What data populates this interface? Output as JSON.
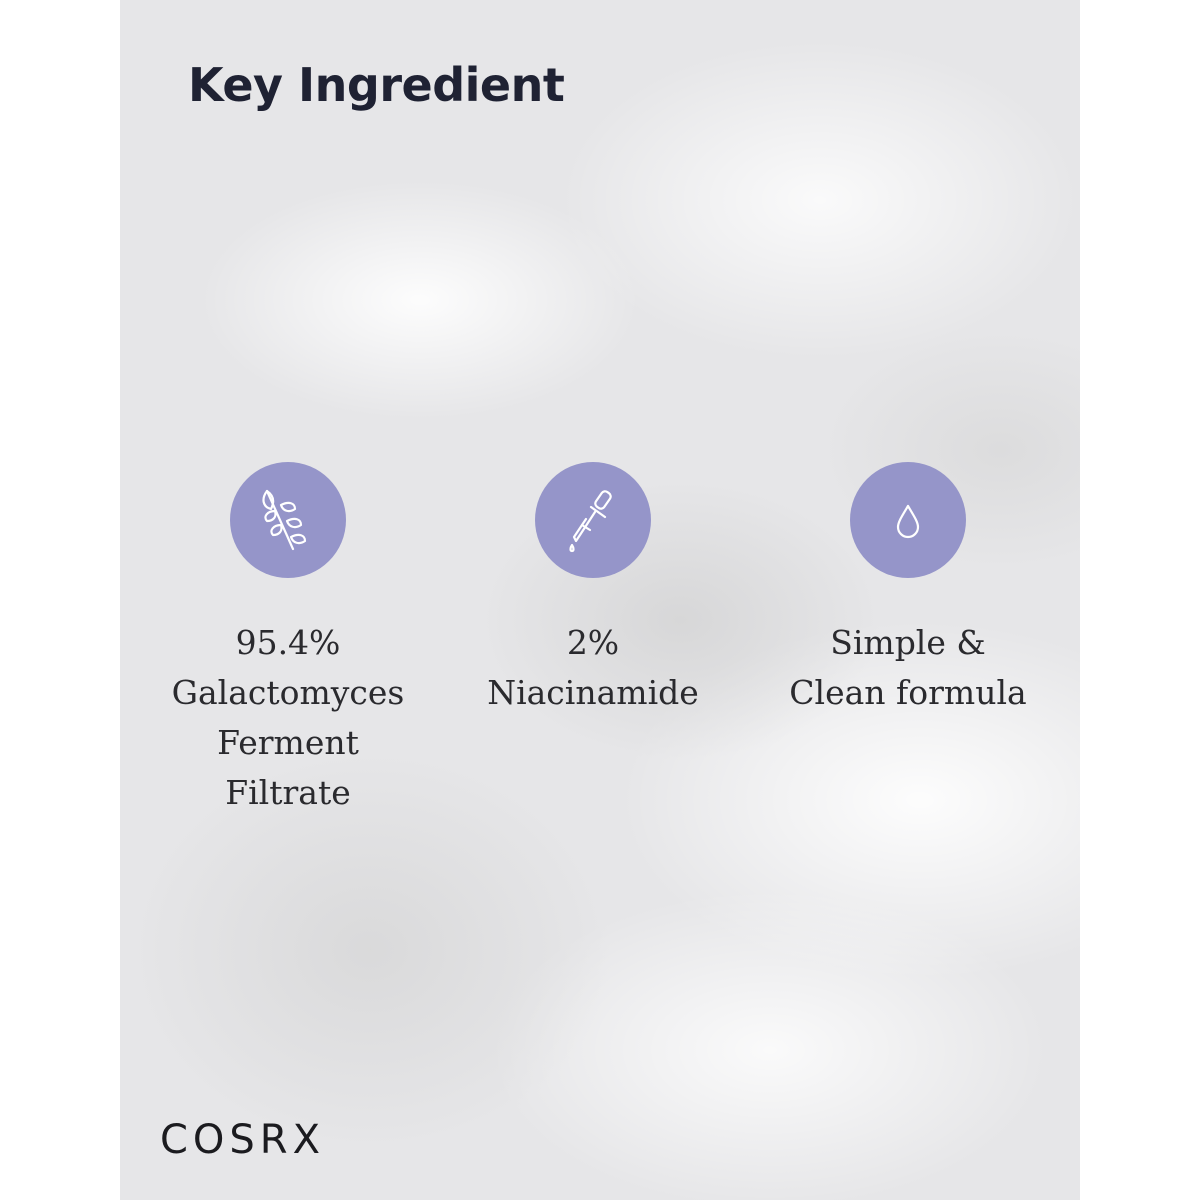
{
  "title": "Key Ingredient",
  "accent_color": "#9595c9",
  "features": [
    {
      "icon": "leaf-branch-icon",
      "lines": [
        "95.4%",
        "Galactomyces",
        "Ferment",
        "Filtrate"
      ]
    },
    {
      "icon": "dropper-icon",
      "lines": [
        "2%",
        "Niacinamide"
      ]
    },
    {
      "icon": "water-drop-icon",
      "lines": [
        "Simple &",
        "Clean formula"
      ]
    }
  ],
  "brand": "COSRX"
}
